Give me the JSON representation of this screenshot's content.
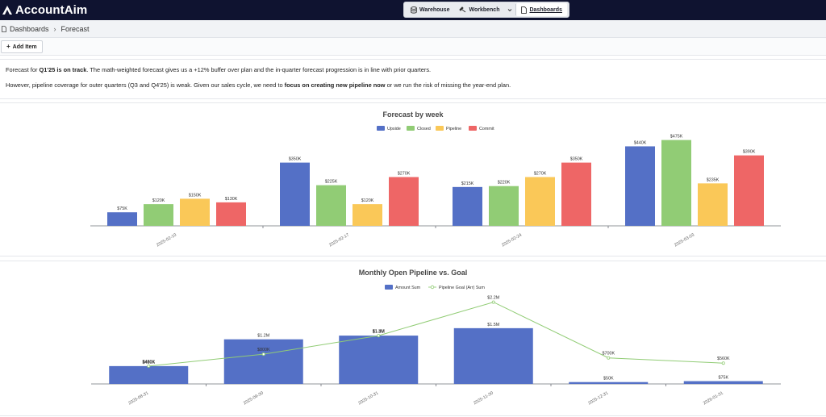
{
  "app": {
    "name": "AccountAim"
  },
  "nav": {
    "items": [
      {
        "label": "Warehouse",
        "icon": "database-icon"
      },
      {
        "label": "Workbench",
        "icon": "workbench-icon"
      },
      {
        "label": "Dashboards",
        "icon": "document-icon",
        "active": true
      }
    ]
  },
  "breadcrumb": {
    "root": "Dashboards",
    "separator": "›",
    "current": "Forecast"
  },
  "toolbar": {
    "add_item_label": "Add Item"
  },
  "summary": {
    "line1": {
      "pre": "Forecast for ",
      "bold": "Q1'25 is on track",
      "post": ". The math-weighted forecast gives us a +12% buffer over plan and the in-quarter forecast progression is in line with prior quarters."
    },
    "line2": {
      "pre": "However, pipeline coverage for outer quarters (Q3 and Q4'25) is weak. Given our sales cycle, we need to ",
      "bold": "focus on creating new pipeline now",
      "post": " or we run the risk of missing the year-end plan."
    }
  },
  "chart_data": [
    {
      "type": "bar",
      "title": "Forecast by week",
      "categories": [
        "2025-02-10",
        "2025-02-17",
        "2025-02-24",
        "2025-03-03"
      ],
      "series": [
        {
          "name": "Upside",
          "color": "#5470c6",
          "values": [
            75,
            350,
            215,
            440
          ],
          "labels": [
            "$75K",
            "$350K",
            "$215K",
            "$440K"
          ]
        },
        {
          "name": "Closed",
          "color": "#91cc75",
          "values": [
            120,
            225,
            220,
            475
          ],
          "labels": [
            "$120K",
            "$225K",
            "$220K",
            "$475K"
          ]
        },
        {
          "name": "Pipeline",
          "color": "#fac858",
          "values": [
            150,
            120,
            270,
            235
          ],
          "labels": [
            "$150K",
            "$120K",
            "$270K",
            "$235K"
          ]
        },
        {
          "name": "Commit",
          "color": "#ee6666",
          "values": [
            130,
            270,
            350,
            390
          ],
          "labels": [
            "$130K",
            "$270K",
            "$350K",
            "$390K"
          ]
        }
      ],
      "ylim": [
        0,
        500
      ],
      "legend": "top-center"
    },
    {
      "type": "bar",
      "title": "Monthly Open Pipeline vs. Goal",
      "categories": [
        "2025-08-31",
        "2025-09-30",
        "2025-10-31",
        "2025-11-30",
        "2025-12-31",
        "2026-01-31"
      ],
      "series": [
        {
          "name": "Amount Sum",
          "type": "bar",
          "color": "#5470c6",
          "values": [
            480,
            1200,
            1300,
            1500,
            50,
            75
          ],
          "labels": [
            "$480K",
            "$1.2M",
            "$1.3M",
            "$1.5M",
            "$50K",
            "$75K"
          ]
        },
        {
          "name": "Pipeline Goal (Arr) Sum",
          "type": "line",
          "color": "#91cc75",
          "values": [
            480,
            800,
            1300,
            2200,
            700,
            560
          ],
          "labels": [
            "$480K",
            "$800K",
            "$1.3M",
            "$2.2M",
            "$700K",
            "$560K"
          ]
        }
      ],
      "ylim": [
        0,
        2300
      ],
      "legend": "top-center"
    }
  ]
}
